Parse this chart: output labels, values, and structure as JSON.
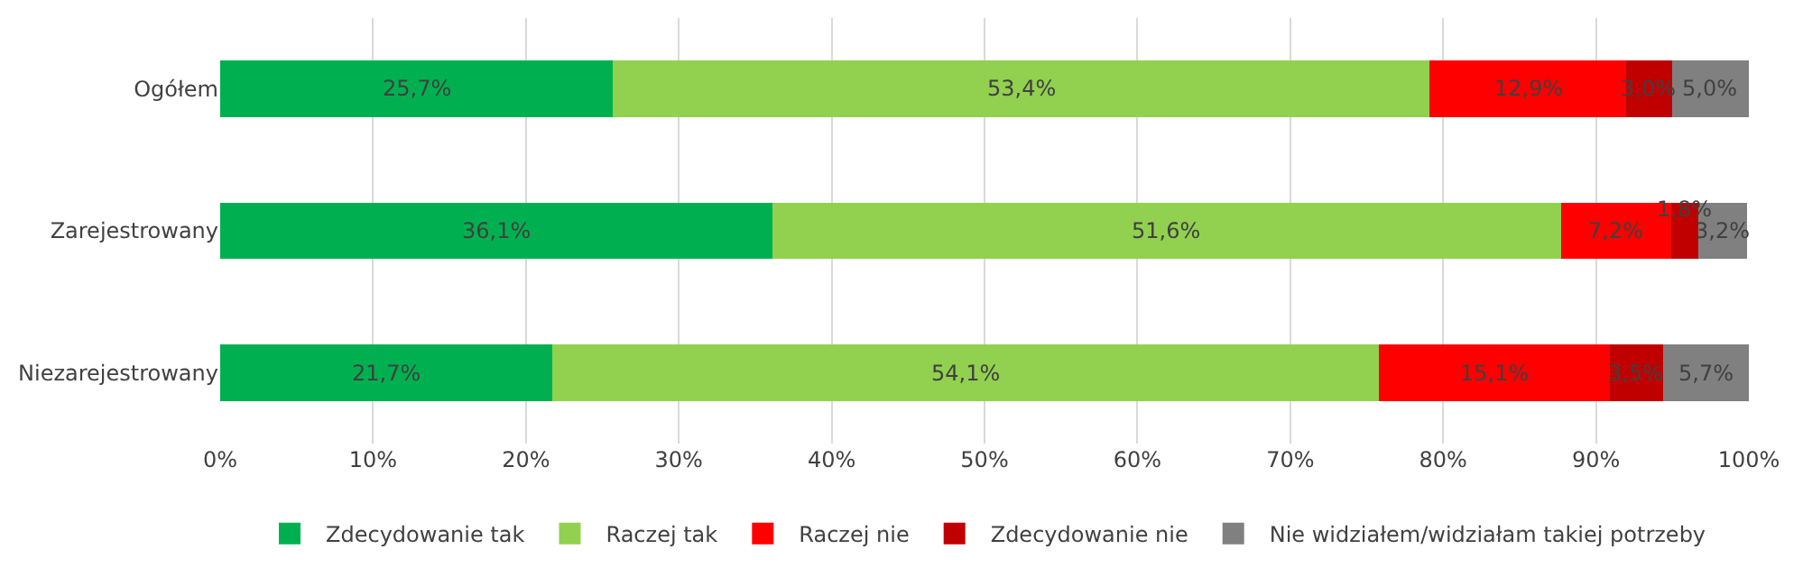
{
  "chart_data": {
    "type": "bar",
    "orientation": "horizontal",
    "stacked": true,
    "categories": [
      "Ogółem",
      "Zarejestrowany",
      "Niezarejestrowany"
    ],
    "series": [
      {
        "name": "Zdecydowanie tak",
        "color": "#00b050",
        "values": [
          25.7,
          36.1,
          21.7
        ],
        "value_labels": [
          "25,7%",
          "36,1%",
          "21,7%"
        ]
      },
      {
        "name": "Raczej tak",
        "color": "#92d050",
        "values": [
          53.4,
          51.6,
          54.1
        ],
        "value_labels": [
          "53,4%",
          "51,6%",
          "54,1%"
        ]
      },
      {
        "name": "Raczej nie",
        "color": "#ff0000",
        "values": [
          12.9,
          7.2,
          15.1
        ],
        "value_labels": [
          "12,9%",
          "7,2%",
          "15,1%"
        ]
      },
      {
        "name": "Zdecydowanie nie",
        "color": "#c00000",
        "values": [
          3.0,
          1.8,
          3.5
        ],
        "value_labels": [
          "3,0%",
          "1,8%",
          "3,5%"
        ]
      },
      {
        "name": "Nie widziałem/widziałam takiej potrzeby",
        "color": "#808080",
        "values": [
          5.0,
          3.2,
          5.7
        ],
        "value_labels": [
          "5,0%",
          "3,2%",
          "5,7%"
        ]
      }
    ],
    "xlim": [
      0,
      100
    ],
    "xticks": [
      {
        "value": 0,
        "label": "0%"
      },
      {
        "value": 10,
        "label": "10%"
      },
      {
        "value": 20,
        "label": "20%"
      },
      {
        "value": 30,
        "label": "30%"
      },
      {
        "value": 40,
        "label": "40%"
      },
      {
        "value": 50,
        "label": "50%"
      },
      {
        "value": 60,
        "label": "60%"
      },
      {
        "value": 70,
        "label": "70%"
      },
      {
        "value": 80,
        "label": "80%"
      },
      {
        "value": 90,
        "label": "90%"
      },
      {
        "value": 100,
        "label": "100%"
      }
    ],
    "grid": "x",
    "legend": "bottom"
  }
}
